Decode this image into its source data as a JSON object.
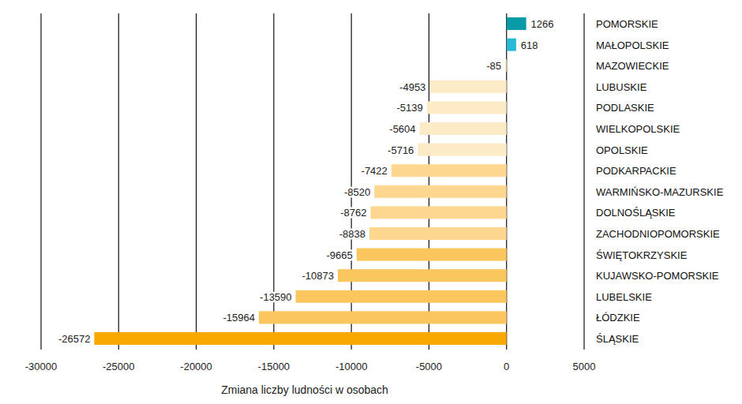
{
  "chart_data": {
    "type": "bar",
    "orientation": "horizontal",
    "x_label": "Zmiana liczby ludności w osobach",
    "categories": [
      "POMORSKIE",
      "MAŁOPOLSKIE",
      "MAZOWIECKIE",
      "LUBUSKIE",
      "PODLASKIE",
      "WIELKOPOLSKIE",
      "OPOLSKIE",
      "PODKARPACKIE",
      "WARMIŃSKO-MAZURSKIE",
      "DOLNOŚLĄSKIE",
      "ZACHODNIOPOMORSKIE",
      "ŚWIĘTOKRZYSKIE",
      "KUJAWSKO-POMORSKIE",
      "LUBELSKIE",
      "ŁÓDZKIE",
      "ŚLĄSKIE"
    ],
    "values": [
      1266,
      618,
      -85,
      -4953,
      -5139,
      -5604,
      -5716,
      -7422,
      -8520,
      -8762,
      -8838,
      -9665,
      -10873,
      -13590,
      -15964,
      -26572
    ],
    "colors": [
      "#0a9ca6",
      "#29b9d4",
      "#fdebc8",
      "#fdebc8",
      "#fdebc8",
      "#fdebc8",
      "#fdebc8",
      "#fdd68f",
      "#fdd68f",
      "#fdd68f",
      "#fdd68f",
      "#fbc65e",
      "#fbc65e",
      "#fbc65e",
      "#fbc65e",
      "#f9a800"
    ],
    "xlim": [
      -30000,
      5000
    ],
    "xticks": [
      -30000,
      -25000,
      -20000,
      -15000,
      -10000,
      -5000,
      0,
      5000
    ],
    "grid": true,
    "data_labels": true
  }
}
